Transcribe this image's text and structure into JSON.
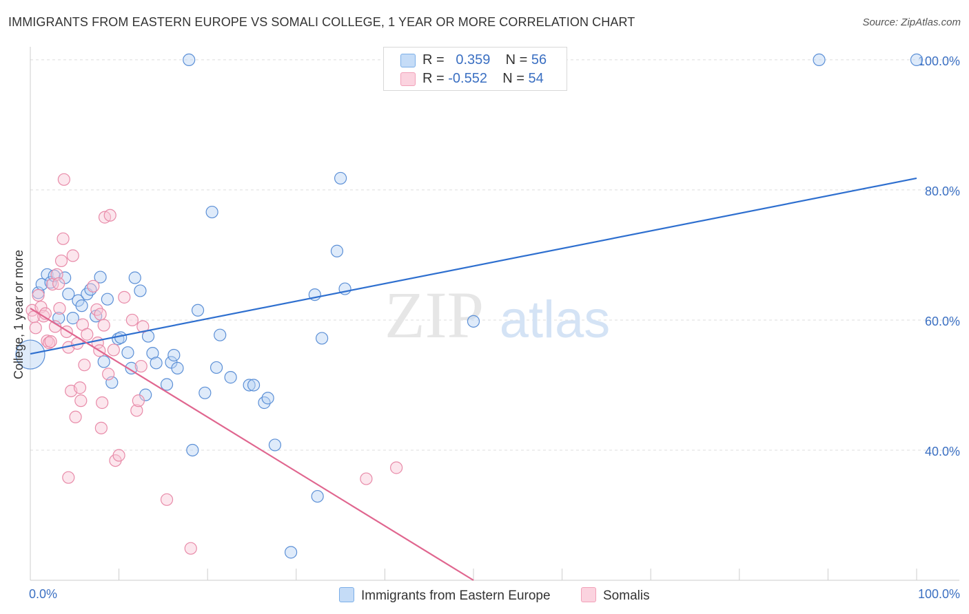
{
  "title": "IMMIGRANTS FROM EASTERN EUROPE VS SOMALI COLLEGE, 1 YEAR OR MORE CORRELATION CHART",
  "source": "Source: ZipAtlas.com",
  "watermark": {
    "zip": "ZIP",
    "atlas": "atlas"
  },
  "legend": {
    "r_label": "R =",
    "n_label": "N =",
    "rows": [
      {
        "r": "0.359",
        "n": "56",
        "color": "#7aaee8"
      },
      {
        "r": "-0.552",
        "n": "54",
        "color": "#f2a0b8"
      }
    ]
  },
  "chart_data": {
    "type": "scatter",
    "title": "IMMIGRANTS FROM EASTERN EUROPE VS SOMALI COLLEGE, 1 YEAR OR MORE CORRELATION CHART",
    "xlabel": "",
    "ylabel": "College, 1 year or more",
    "xlim": [
      0,
      100
    ],
    "ylim": [
      20,
      102
    ],
    "x_tick_labels": [
      "0.0%",
      "100.0%"
    ],
    "y_ticks": [
      40,
      60,
      80,
      100
    ],
    "y_tick_labels": [
      "40.0%",
      "60.0%",
      "80.0%",
      "100.0%"
    ],
    "grid": true,
    "series": [
      {
        "name": "Immigrants from Eastern Europe",
        "color": "#5b8fd6",
        "fill": "#b8d3f4",
        "trend": {
          "x": [
            0,
            100
          ],
          "y": [
            54.8,
            81.8
          ],
          "color": "#2e6fcf"
        },
        "points": [
          {
            "x": 0.0,
            "y": 54.7,
            "big": true
          },
          {
            "x": 0.9,
            "y": 64.2
          },
          {
            "x": 1.3,
            "y": 65.5
          },
          {
            "x": 1.9,
            "y": 67.0
          },
          {
            "x": 2.3,
            "y": 65.8
          },
          {
            "x": 2.7,
            "y": 66.8
          },
          {
            "x": 3.2,
            "y": 60.3
          },
          {
            "x": 3.9,
            "y": 66.5
          },
          {
            "x": 4.3,
            "y": 64.0
          },
          {
            "x": 4.8,
            "y": 60.3
          },
          {
            "x": 5.4,
            "y": 63.0
          },
          {
            "x": 5.8,
            "y": 62.2
          },
          {
            "x": 6.4,
            "y": 64.0
          },
          {
            "x": 6.8,
            "y": 64.7
          },
          {
            "x": 7.4,
            "y": 60.6
          },
          {
            "x": 7.9,
            "y": 66.6
          },
          {
            "x": 8.3,
            "y": 53.6
          },
          {
            "x": 8.7,
            "y": 63.2
          },
          {
            "x": 9.2,
            "y": 50.4
          },
          {
            "x": 9.9,
            "y": 57.1
          },
          {
            "x": 10.2,
            "y": 57.3
          },
          {
            "x": 11.0,
            "y": 55.0
          },
          {
            "x": 11.4,
            "y": 52.6
          },
          {
            "x": 11.8,
            "y": 66.5
          },
          {
            "x": 12.4,
            "y": 64.5
          },
          {
            "x": 13.0,
            "y": 48.5
          },
          {
            "x": 13.3,
            "y": 57.5
          },
          {
            "x": 13.8,
            "y": 54.9
          },
          {
            "x": 14.2,
            "y": 53.4
          },
          {
            "x": 15.4,
            "y": 50.1
          },
          {
            "x": 15.9,
            "y": 53.5
          },
          {
            "x": 16.2,
            "y": 54.6
          },
          {
            "x": 16.6,
            "y": 52.6
          },
          {
            "x": 17.9,
            "y": 100.0
          },
          {
            "x": 18.3,
            "y": 40.0
          },
          {
            "x": 18.9,
            "y": 61.5
          },
          {
            "x": 19.7,
            "y": 48.8
          },
          {
            "x": 20.5,
            "y": 76.6
          },
          {
            "x": 21.0,
            "y": 52.7
          },
          {
            "x": 21.4,
            "y": 57.7
          },
          {
            "x": 22.6,
            "y": 51.2
          },
          {
            "x": 24.7,
            "y": 50.0
          },
          {
            "x": 25.2,
            "y": 50.0
          },
          {
            "x": 26.4,
            "y": 47.3
          },
          {
            "x": 26.8,
            "y": 48.0
          },
          {
            "x": 27.6,
            "y": 40.8
          },
          {
            "x": 32.1,
            "y": 63.9
          },
          {
            "x": 32.4,
            "y": 32.9
          },
          {
            "x": 32.9,
            "y": 57.2
          },
          {
            "x": 34.6,
            "y": 70.6
          },
          {
            "x": 35.0,
            "y": 81.8
          },
          {
            "x": 35.5,
            "y": 64.8
          },
          {
            "x": 29.4,
            "y": 24.3
          },
          {
            "x": 50.0,
            "y": 59.8
          },
          {
            "x": 89.0,
            "y": 100.0
          },
          {
            "x": 100.0,
            "y": 100.0
          }
        ]
      },
      {
        "name": "Somalis",
        "color": "#e88aa8",
        "fill": "#f9c7d6",
        "trend": {
          "x": [
            0,
            50
          ],
          "y": [
            61.8,
            20.0
          ],
          "color": "#e0668f"
        },
        "points": [
          {
            "x": 0.2,
            "y": 61.5
          },
          {
            "x": 0.4,
            "y": 60.5
          },
          {
            "x": 0.6,
            "y": 58.8
          },
          {
            "x": 0.9,
            "y": 63.8
          },
          {
            "x": 1.2,
            "y": 62.0
          },
          {
            "x": 1.5,
            "y": 60.6
          },
          {
            "x": 1.7,
            "y": 61.0
          },
          {
            "x": 1.9,
            "y": 56.8
          },
          {
            "x": 2.1,
            "y": 56.5
          },
          {
            "x": 2.3,
            "y": 56.7
          },
          {
            "x": 2.5,
            "y": 65.5
          },
          {
            "x": 2.8,
            "y": 59.0
          },
          {
            "x": 3.0,
            "y": 67.0
          },
          {
            "x": 3.2,
            "y": 65.6
          },
          {
            "x": 3.3,
            "y": 61.8
          },
          {
            "x": 3.5,
            "y": 69.1
          },
          {
            "x": 3.7,
            "y": 72.5
          },
          {
            "x": 3.8,
            "y": 81.6
          },
          {
            "x": 4.1,
            "y": 58.2
          },
          {
            "x": 4.3,
            "y": 55.8
          },
          {
            "x": 4.6,
            "y": 49.1
          },
          {
            "x": 4.8,
            "y": 69.9
          },
          {
            "x": 5.1,
            "y": 45.1
          },
          {
            "x": 5.3,
            "y": 56.4
          },
          {
            "x": 5.6,
            "y": 49.6
          },
          {
            "x": 5.7,
            "y": 47.6
          },
          {
            "x": 5.9,
            "y": 59.3
          },
          {
            "x": 6.1,
            "y": 53.1
          },
          {
            "x": 6.4,
            "y": 57.8
          },
          {
            "x": 7.1,
            "y": 65.2
          },
          {
            "x": 7.5,
            "y": 61.6
          },
          {
            "x": 7.6,
            "y": 56.5
          },
          {
            "x": 7.8,
            "y": 55.3
          },
          {
            "x": 8.0,
            "y": 43.4
          },
          {
            "x": 8.1,
            "y": 47.3
          },
          {
            "x": 8.3,
            "y": 59.2
          },
          {
            "x": 8.4,
            "y": 75.8
          },
          {
            "x": 8.8,
            "y": 51.7
          },
          {
            "x": 9.0,
            "y": 76.1
          },
          {
            "x": 9.4,
            "y": 55.4
          },
          {
            "x": 9.6,
            "y": 38.4
          },
          {
            "x": 10.0,
            "y": 39.2
          },
          {
            "x": 10.6,
            "y": 63.5
          },
          {
            "x": 11.5,
            "y": 60.0
          },
          {
            "x": 12.0,
            "y": 46.1
          },
          {
            "x": 12.2,
            "y": 47.6
          },
          {
            "x": 12.5,
            "y": 52.9
          },
          {
            "x": 12.7,
            "y": 59.0
          },
          {
            "x": 4.3,
            "y": 35.8
          },
          {
            "x": 15.4,
            "y": 32.4
          },
          {
            "x": 18.1,
            "y": 24.9
          },
          {
            "x": 37.9,
            "y": 35.6
          },
          {
            "x": 41.3,
            "y": 37.3
          },
          {
            "x": 7.9,
            "y": 60.9
          }
        ]
      }
    ],
    "bottom_legend": [
      "Immigrants from Eastern Europe",
      "Somalis"
    ]
  }
}
